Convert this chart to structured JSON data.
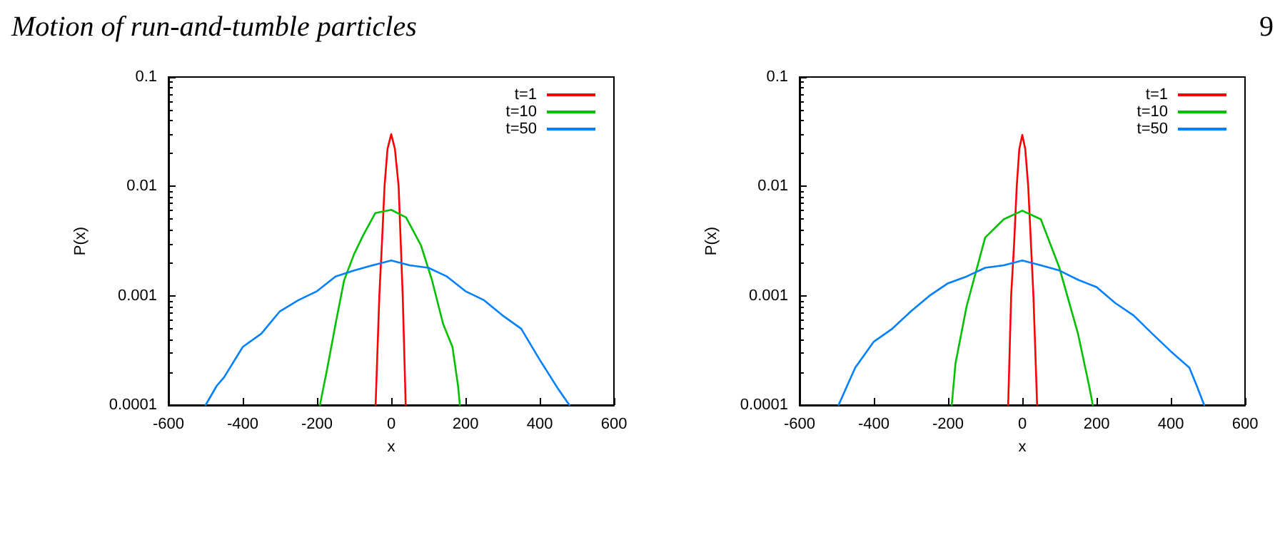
{
  "chart_data": [
    {
      "type": "line",
      "title": "Motion of run-and-tumble particles",
      "xlabel": "x",
      "ylabel": "P(x)",
      "log": "y",
      "xlim": [
        -600,
        600
      ],
      "xticks": [
        -600,
        -400,
        -200,
        0,
        200,
        400,
        600
      ],
      "ylim": [
        0.0001,
        0.1
      ],
      "yticks": [
        0.0001,
        0.001,
        0.01,
        0.1
      ],
      "legend": "top right",
      "grid": false,
      "marker": "none",
      "line_style": "solid",
      "series": [
        {
          "name": "t=1",
          "color": "#ff0000",
          "x": [
            -42,
            -32,
            -25,
            -18,
            -10,
            0,
            10,
            20,
            31,
            39
          ],
          "values": [
            0.0001,
            0.001,
            0.003,
            0.01,
            0.022,
            0.03,
            0.022,
            0.01,
            0.001,
            0.0001
          ]
        },
        {
          "name": "t=10",
          "color": "#00c000",
          "x": [
            -192,
            -173,
            -150,
            -127,
            -100,
            -75,
            -43,
            0,
            40,
            80,
            110,
            140,
            165,
            180,
            185
          ],
          "values": [
            0.0001,
            0.00021,
            0.00055,
            0.00138,
            0.0024,
            0.0036,
            0.0057,
            0.0061,
            0.0052,
            0.0029,
            0.00138,
            0.00055,
            0.00034,
            0.00015,
            0.0001
          ]
        },
        {
          "name": "t=50",
          "color": "#0080ff",
          "x": [
            -500,
            -470,
            -450,
            -400,
            -350,
            -300,
            -250,
            -200,
            -150,
            -100,
            -50,
            0,
            50,
            100,
            150,
            200,
            250,
            300,
            350,
            400,
            450,
            480
          ],
          "values": [
            0.0001,
            0.00015,
            0.00018,
            0.00034,
            0.00045,
            0.00072,
            0.00091,
            0.0011,
            0.0015,
            0.0017,
            0.0019,
            0.0021,
            0.0019,
            0.0018,
            0.0015,
            0.0011,
            0.00091,
            0.00066,
            0.0005,
            0.00026,
            0.00014,
            0.0001
          ]
        }
      ]
    },
    {
      "type": "line",
      "annotations": [
        "9"
      ],
      "xlabel": "x",
      "ylabel": "P(x)",
      "log": "y",
      "xlim": [
        -600,
        600
      ],
      "xticks": [
        -600,
        -400,
        -200,
        0,
        200,
        400,
        600
      ],
      "ylim": [
        0.0001,
        0.1
      ],
      "yticks": [
        0.0001,
        0.001,
        0.01,
        0.1
      ],
      "legend": "top right",
      "grid": false,
      "marker": "none",
      "line_style": "solid",
      "series": [
        {
          "name": "t=1",
          "color": "#ff0000",
          "x": [
            -38,
            -30,
            -22,
            -15,
            -8,
            0,
            8,
            16,
            30,
            40
          ],
          "values": [
            0.0001,
            0.001,
            0.003,
            0.01,
            0.022,
            0.0295,
            0.022,
            0.01,
            0.001,
            0.0001
          ]
        },
        {
          "name": "t=10",
          "color": "#00c000",
          "x": [
            -190,
            -180,
            -150,
            -100,
            -50,
            0,
            50,
            100,
            150,
            180,
            190
          ],
          "values": [
            0.0001,
            0.00024,
            0.0008,
            0.0034,
            0.005,
            0.006,
            0.005,
            0.0018,
            0.00045,
            0.00015,
            0.0001
          ]
        },
        {
          "name": "t=50",
          "color": "#0080ff",
          "x": [
            -495,
            -450,
            -400,
            -350,
            -300,
            -250,
            -200,
            -150,
            -100,
            -50,
            0,
            50,
            100,
            150,
            200,
            250,
            300,
            350,
            400,
            450,
            470,
            490
          ],
          "values": [
            0.0001,
            0.00022,
            0.00038,
            0.0005,
            0.00072,
            0.001,
            0.0013,
            0.0015,
            0.0018,
            0.0019,
            0.0021,
            0.0019,
            0.0017,
            0.0014,
            0.0012,
            0.00086,
            0.00066,
            0.00045,
            0.00031,
            0.00022,
            0.00015,
            0.0001
          ]
        }
      ]
    }
  ]
}
